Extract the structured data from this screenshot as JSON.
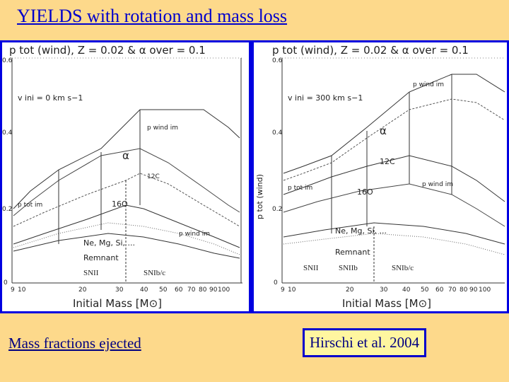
{
  "title": "YIELDS with rotation and mass loss",
  "captions": {
    "left": "Mass fractions ejected",
    "right": "Hirschi et al. 2004"
  },
  "plot_header": "p tot (wind), Z = 0.02 & α over = 0.1",
  "x_axis": {
    "label": "Initial Mass [M⊙]",
    "ticks": [
      "9",
      "10",
      "20",
      "30",
      "40",
      "50",
      "60",
      "70",
      "80",
      "90",
      "100"
    ]
  },
  "y_axis": {
    "label": "p tot (wind)",
    "ticks": [
      "0",
      "0.2",
      "0.4",
      "0.6"
    ]
  },
  "panels": {
    "left": {
      "velocity": "v ini = 0 km s−1",
      "regions": [
        "p wind im",
        "α",
        "12C",
        "16O",
        "Ne, Mg, Si, ...",
        "Remnant",
        "SNII",
        "SNIb/c",
        "p tot im",
        "p wind im"
      ]
    },
    "right": {
      "velocity": "v ini = 300 km s−1",
      "regions": [
        "p wind im",
        "α",
        "12C",
        "16O",
        "Ne, Mg, Si, ...",
        "Remnant",
        "SNII",
        "SNIIb",
        "SNIb/c",
        "p tot im",
        "p wind im"
      ]
    }
  }
}
